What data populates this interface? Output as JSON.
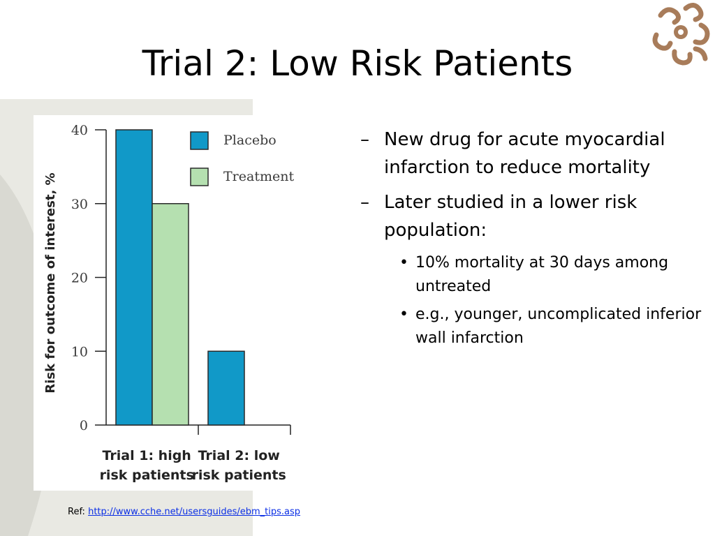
{
  "slide": {
    "title": "Trial 2: Low Risk Patients",
    "bullets": [
      {
        "marker": "–",
        "text": "New drug for acute myocardial infarction to reduce mortality"
      },
      {
        "marker": "–",
        "text": "Later studied in a lower risk population:"
      }
    ],
    "sub_bullets": [
      {
        "marker": "•",
        "text": "10% mortality at 30 days among untreated"
      },
      {
        "marker": "•",
        "text": "e.g., younger, uncomplicated inferior wall infarction"
      }
    ],
    "ref": {
      "label": "Ref:",
      "url": "http://www.cche.net/usersguides/ebm_tips.asp"
    },
    "logo_icon": "ornamental-swirl-logo-icon"
  },
  "colors": {
    "placebo": "#1199c8",
    "treatment": "#b5e0b0",
    "link": "#0b2fe5",
    "logo": "#a87c5a",
    "decor": "#e3e3dd"
  },
  "chart_data": {
    "type": "bar",
    "title": "",
    "xlabel": "",
    "ylabel": "Risk for outcome of interest, %",
    "categories": [
      "Trial 1: high risk patients",
      "Trial 2: low risk patients"
    ],
    "category_lines": [
      [
        "Trial 1: high",
        "risk patients"
      ],
      [
        "Trial 2: low",
        "risk patients"
      ]
    ],
    "series": [
      {
        "name": "Placebo",
        "values": [
          40,
          10
        ]
      },
      {
        "name": "Treatment",
        "values": [
          30,
          0
        ]
      }
    ],
    "ylim": [
      0,
      40
    ],
    "yticks": [
      0,
      10,
      20,
      30,
      40
    ],
    "grid": false,
    "legend": "top-right"
  }
}
